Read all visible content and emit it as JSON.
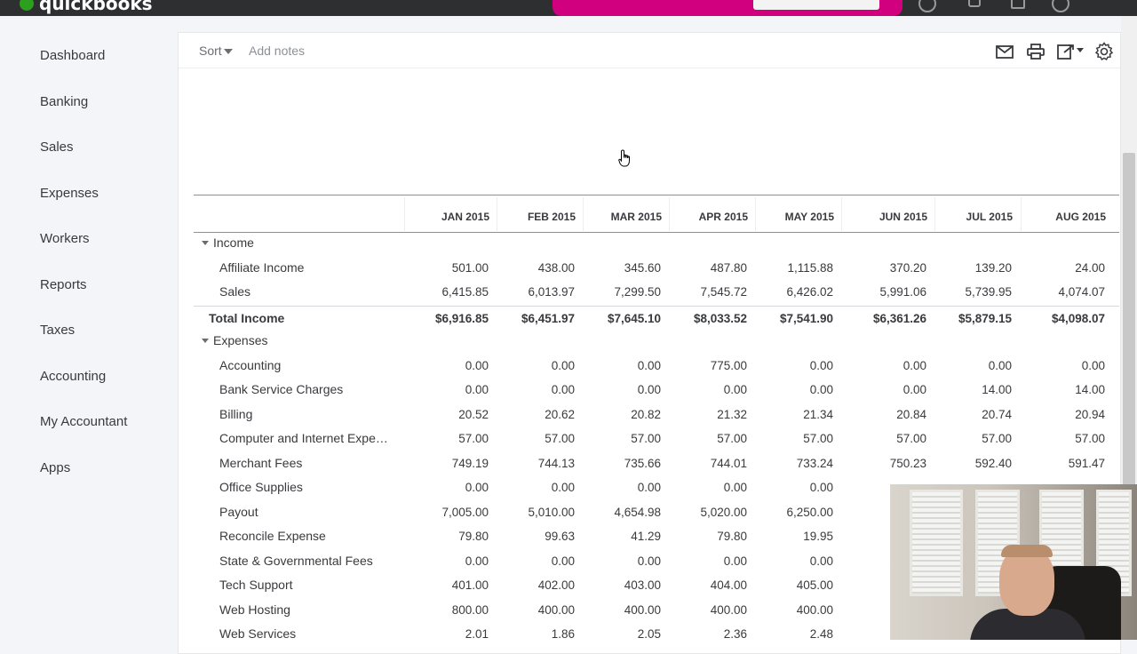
{
  "app": {
    "brand": "quickbooks",
    "brand_color": "#2ca01c",
    "promo_color": "#d1007f"
  },
  "sidebar": {
    "items": [
      {
        "label": "Dashboard"
      },
      {
        "label": "Banking"
      },
      {
        "label": "Sales"
      },
      {
        "label": "Expenses"
      },
      {
        "label": "Workers"
      },
      {
        "label": "Reports"
      },
      {
        "label": "Taxes"
      },
      {
        "label": "Accounting"
      },
      {
        "label": "My Accountant"
      },
      {
        "label": "Apps"
      }
    ]
  },
  "toolbar": {
    "sort_label": "Sort",
    "add_notes_label": "Add notes",
    "icons": [
      "email-icon",
      "print-icon",
      "export-icon",
      "settings-icon"
    ]
  },
  "report": {
    "columns": [
      "JAN 2015",
      "FEB 2015",
      "MAR 2015",
      "APR 2015",
      "MAY 2015",
      "JUN 2015",
      "JUL 2015",
      "AUG 2015"
    ],
    "income_header": "Income",
    "income_rows": [
      {
        "label": "Affiliate Income",
        "values": [
          "501.00",
          "438.00",
          "345.60",
          "487.80",
          "1,115.88",
          "370.20",
          "139.20",
          "24.00"
        ]
      },
      {
        "label": "Sales",
        "values": [
          "6,415.85",
          "6,013.97",
          "7,299.50",
          "7,545.72",
          "6,426.02",
          "5,991.06",
          "5,739.95",
          "4,074.07"
        ]
      }
    ],
    "total_income": {
      "label": "Total Income",
      "values": [
        "$6,916.85",
        "$6,451.97",
        "$7,645.10",
        "$8,033.52",
        "$7,541.90",
        "$6,361.26",
        "$5,879.15",
        "$4,098.07"
      ]
    },
    "expenses_header": "Expenses",
    "expense_rows": [
      {
        "label": "Accounting",
        "values": [
          "0.00",
          "0.00",
          "0.00",
          "775.00",
          "0.00",
          "0.00",
          "0.00",
          "0.00"
        ]
      },
      {
        "label": "Bank Service Charges",
        "values": [
          "0.00",
          "0.00",
          "0.00",
          "0.00",
          "0.00",
          "0.00",
          "14.00",
          "14.00"
        ]
      },
      {
        "label": "Billing",
        "values": [
          "20.52",
          "20.62",
          "20.82",
          "21.32",
          "21.34",
          "20.84",
          "20.74",
          "20.94"
        ]
      },
      {
        "label": "Computer and Internet Expe…",
        "values": [
          "57.00",
          "57.00",
          "57.00",
          "57.00",
          "57.00",
          "57.00",
          "57.00",
          "57.00"
        ]
      },
      {
        "label": "Merchant Fees",
        "values": [
          "749.19",
          "744.13",
          "735.66",
          "744.01",
          "733.24",
          "750.23",
          "592.40",
          "591.47"
        ]
      },
      {
        "label": "Office Supplies",
        "values": [
          "0.00",
          "0.00",
          "0.00",
          "0.00",
          "0.00",
          "",
          "",
          ""
        ]
      },
      {
        "label": "Payout",
        "values": [
          "7,005.00",
          "5,010.00",
          "4,654.98",
          "5,020.00",
          "6,250.00",
          "",
          "",
          ""
        ]
      },
      {
        "label": "Reconcile Expense",
        "values": [
          "79.80",
          "99.63",
          "41.29",
          "79.80",
          "19.95",
          "",
          "",
          ""
        ]
      },
      {
        "label": "State & Governmental Fees",
        "values": [
          "0.00",
          "0.00",
          "0.00",
          "0.00",
          "0.00",
          "",
          "",
          ""
        ]
      },
      {
        "label": "Tech Support",
        "values": [
          "401.00",
          "402.00",
          "403.00",
          "404.00",
          "405.00",
          "",
          "",
          ""
        ]
      },
      {
        "label": "Web Hosting",
        "values": [
          "800.00",
          "400.00",
          "400.00",
          "400.00",
          "400.00",
          "",
          "",
          ""
        ]
      },
      {
        "label": "Web Services",
        "values": [
          "2.01",
          "1.86",
          "2.05",
          "2.36",
          "2.48",
          "",
          "",
          ""
        ]
      }
    ]
  }
}
